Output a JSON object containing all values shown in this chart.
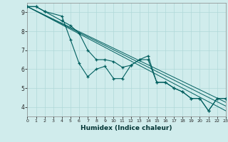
{
  "xlabel": "Humidex (Indice chaleur)",
  "bg_color": "#d0ecec",
  "grid_color": "#b0d8d8",
  "line_color": "#005f5f",
  "xlim": [
    0,
    23
  ],
  "ylim": [
    3.5,
    9.5
  ],
  "xticks": [
    0,
    1,
    2,
    3,
    4,
    5,
    6,
    7,
    8,
    9,
    10,
    11,
    12,
    13,
    14,
    15,
    16,
    17,
    18,
    19,
    20,
    21,
    22,
    23
  ],
  "yticks": [
    4,
    5,
    6,
    7,
    8,
    9
  ],
  "series1_x": [
    0,
    1,
    2,
    4,
    5,
    6,
    7,
    8,
    9,
    10,
    11,
    12,
    13,
    14,
    15,
    16,
    17,
    18,
    19,
    20,
    21,
    22,
    23
  ],
  "series1_y": [
    9.3,
    9.3,
    9.05,
    8.8,
    7.55,
    6.3,
    5.6,
    6.0,
    6.15,
    5.5,
    5.5,
    6.2,
    6.5,
    6.7,
    5.3,
    5.3,
    5.0,
    4.8,
    4.45,
    4.45,
    3.8,
    4.45,
    4.45
  ],
  "series2_x": [
    0,
    1,
    2,
    4,
    5,
    6,
    7,
    8,
    9,
    10,
    11,
    12,
    13,
    14,
    15,
    16,
    17,
    18,
    19,
    20,
    21,
    22,
    23
  ],
  "series2_y": [
    9.3,
    9.3,
    9.05,
    8.55,
    8.3,
    7.9,
    7.0,
    6.5,
    6.5,
    6.4,
    6.1,
    6.2,
    6.5,
    6.5,
    5.3,
    5.3,
    5.0,
    4.8,
    4.45,
    4.45,
    3.8,
    4.45,
    4.45
  ],
  "straight_lines": [
    {
      "x": [
        0,
        23
      ],
      "y": [
        9.3,
        3.8
      ]
    },
    {
      "x": [
        0,
        23
      ],
      "y": [
        9.3,
        4.05
      ]
    },
    {
      "x": [
        0,
        23
      ],
      "y": [
        9.3,
        4.25
      ]
    }
  ]
}
